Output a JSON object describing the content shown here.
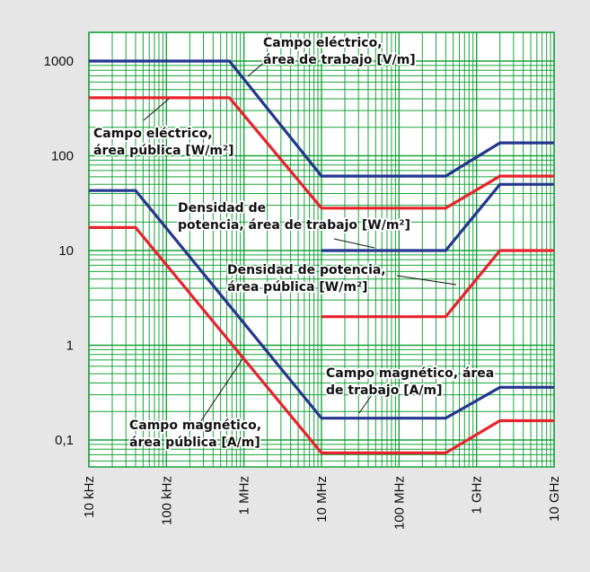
{
  "chart_data": {
    "type": "line",
    "x_scale": "log",
    "y_scale": "log",
    "xlim": [
      10000,
      10000000000
    ],
    "ylim": [
      0.05,
      2000
    ],
    "grid": true,
    "x_ticks": [
      {
        "value": 10000,
        "label": "10 kHz"
      },
      {
        "value": 100000,
        "label": "100 kHz"
      },
      {
        "value": 1000000,
        "label": "1 MHz"
      },
      {
        "value": 10000000,
        "label": "10 MHz"
      },
      {
        "value": 100000000,
        "label": "100 MHz"
      },
      {
        "value": 1000000000,
        "label": "1 GHz"
      },
      {
        "value": 10000000000,
        "label": "10 GHz"
      }
    ],
    "y_ticks": [
      {
        "value": 1000,
        "label": "1000"
      },
      {
        "value": 100,
        "label": "100"
      },
      {
        "value": 10,
        "label": "10"
      },
      {
        "value": 1,
        "label": "1"
      },
      {
        "value": 0.1,
        "label": "0,1"
      }
    ],
    "colors": {
      "background": "#e6e6e7",
      "plot": "#ffffff",
      "grid": "#18a23a",
      "worker": "#23358f",
      "public": "#e8222c"
    },
    "series": [
      {
        "color": "#23358f",
        "x": [
          10000,
          650000,
          10000000,
          400000000,
          2000000000,
          10000000000
        ],
        "y": [
          1000,
          1000,
          61,
          61,
          137,
          137
        ]
      },
      {
        "color": "#e8222c",
        "x": [
          10000,
          650000,
          10000000,
          400000000,
          2000000000,
          10000000000
        ],
        "y": [
          410,
          410,
          28,
          28,
          61,
          61
        ]
      },
      {
        "color": "#23358f",
        "x": [
          10000,
          40000,
          10000000,
          400000000,
          2000000000,
          10000000000
        ],
        "y": [
          43,
          43,
          0.17,
          0.17,
          0.36,
          0.36
        ]
      },
      {
        "color": "#e8222c",
        "x": [
          10000,
          40000,
          10000000,
          400000000,
          2000000000,
          10000000000
        ],
        "y": [
          17.5,
          17.5,
          0.073,
          0.073,
          0.16,
          0.16
        ]
      },
      {
        "color": "#23358f",
        "x": [
          10000000,
          400000000,
          2000000000,
          10000000000
        ],
        "y": [
          10,
          10,
          50,
          50
        ]
      },
      {
        "color": "#e8222c",
        "x": [
          10000000,
          400000000,
          2000000000,
          10000000000
        ],
        "y": [
          2,
          2,
          10,
          10
        ]
      }
    ],
    "annotations": [
      {
        "lines": [
          "Campo eléctrico,",
          "área de trabajo [V/m]"
        ]
      },
      {
        "lines": [
          "Campo eléctrico,",
          "área pública [W/m²]"
        ]
      },
      {
        "lines": [
          "Densidad  de",
          "potencia, área de trabajo [W/m²]"
        ]
      },
      {
        "lines": [
          "Densidad de potencia,",
          "área pública [W/m²]"
        ]
      },
      {
        "lines": [
          "Campo magnético, área",
          "de trabajo [A/m]"
        ]
      },
      {
        "lines": [
          "Campo magnético,",
          "área pública [A/m]"
        ]
      }
    ]
  }
}
